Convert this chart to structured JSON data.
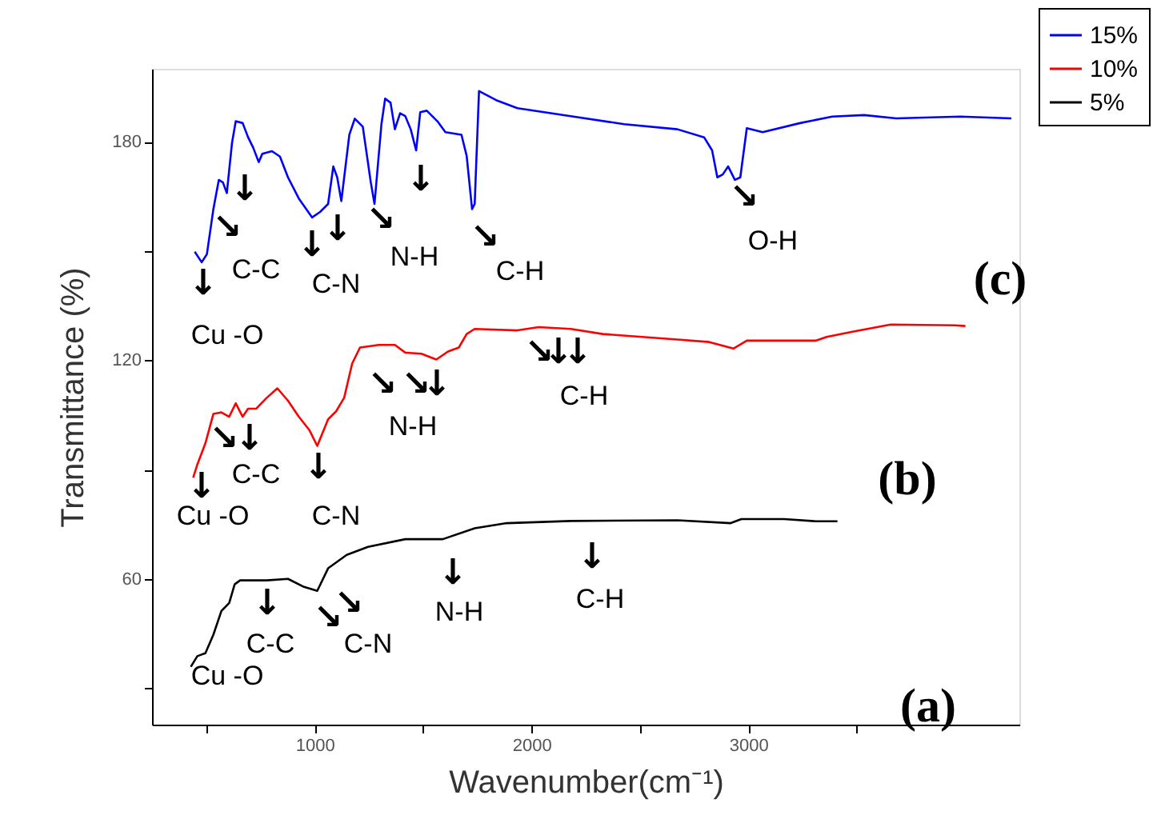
{
  "chart_data": {
    "type": "line",
    "xlabel": "Wavenumber(cm⁻¹)",
    "ylabel": "Transmittance (%)",
    "xlim": [
      250,
      4250
    ],
    "ylim": [
      20,
      200
    ],
    "xticks": [
      {
        "value": 500,
        "label": null
      },
      1000,
      {
        "value": 1500,
        "label": null
      },
      2000,
      {
        "value": 2500,
        "label": null
      },
      3000,
      {
        "value": 3500,
        "label": null
      }
    ],
    "yticks": [
      {
        "value": 30,
        "label": null
      },
      60,
      {
        "value": 90,
        "label": null
      },
      120,
      {
        "value": 150,
        "label": null
      },
      180
    ],
    "legend": "top right",
    "line_style": "solid",
    "series": [
      {
        "name": "15%",
        "color": "#0000ff",
        "x": [
          447,
          479,
          503,
          533,
          558,
          577,
          595,
          619,
          636,
          668,
          693,
          717,
          742,
          759,
          803,
          840,
          877,
          927,
          988,
          1025,
          1062,
          1086,
          1104,
          1123,
          1160,
          1185,
          1222,
          1259,
          1276,
          1308,
          1325,
          1350,
          1370,
          1394,
          1418,
          1443,
          1468,
          1487,
          1517,
          1566,
          1603,
          1677,
          1701,
          1726,
          1738,
          1758,
          1837,
          1935,
          2181,
          2427,
          2673,
          2796,
          2833,
          2857,
          2882,
          2907,
          2938,
          2963,
          2993,
          3066,
          3239,
          3387,
          3534,
          3682,
          3977,
          4213
        ],
        "values": [
          149.8,
          146.9,
          149.1,
          161.5,
          169.5,
          168.8,
          165.9,
          179.7,
          185.6,
          185.1,
          181.2,
          178.3,
          174.4,
          176.7,
          177.4,
          175.9,
          170.2,
          164.4,
          159.2,
          160.7,
          162.9,
          173.2,
          170.2,
          163.7,
          181.9,
          186.3,
          184.1,
          168.8,
          162.9,
          184.8,
          191.8,
          190.7,
          183.4,
          187.8,
          187.0,
          183.4,
          177.6,
          188.1,
          188.5,
          185.6,
          182.6,
          181.9,
          176.1,
          161.5,
          162.9,
          193.9,
          191.4,
          189.2,
          187.0,
          184.8,
          183.4,
          181.2,
          177.6,
          170.2,
          171.0,
          173.2,
          169.5,
          170.2,
          183.7,
          182.6,
          185.1,
          186.9,
          187.3,
          186.4,
          186.9,
          186.4
        ]
      },
      {
        "name": "10%",
        "color": "#ff0000",
        "x": [
          440,
          459,
          496,
          533,
          570,
          606,
          636,
          668,
          693,
          730,
          779,
          828,
          877,
          927,
          975,
          1012,
          1062,
          1099,
          1136,
          1173,
          1209,
          1296,
          1370,
          1418,
          1492,
          1561,
          1615,
          1665,
          1701,
          1738,
          1935,
          2033,
          2181,
          2329,
          2673,
          2820,
          2931,
          2993,
          3313,
          3361,
          3485,
          3657,
          3952,
          4001
        ],
        "values": [
          87.8,
          91.4,
          97.2,
          105.3,
          105.7,
          104.5,
          108.2,
          104.5,
          106.7,
          106.7,
          109.7,
          112.3,
          108.9,
          104.5,
          100.9,
          96.5,
          103.8,
          106.0,
          109.7,
          119.1,
          123.5,
          124.2,
          124.2,
          122.1,
          121.8,
          120.2,
          122.4,
          123.5,
          127.2,
          128.6,
          128.2,
          129.1,
          128.6,
          127.2,
          125.7,
          125.0,
          123.2,
          125.4,
          125.4,
          126.4,
          127.9,
          129.8,
          129.6,
          129.4
        ]
      },
      {
        "name": "5%",
        "color": "#000000",
        "x": [
          429,
          459,
          496,
          533,
          570,
          606,
          631,
          656,
          779,
          877,
          951,
          1012,
          1062,
          1148,
          1246,
          1418,
          1591,
          1738,
          1886,
          2181,
          2673,
          2919,
          2968,
          3165,
          3313,
          3411
        ],
        "values": [
          35.9,
          38.8,
          39.6,
          44.7,
          51.2,
          53.4,
          58.5,
          59.6,
          59.6,
          60.0,
          57.8,
          56.7,
          62.9,
          66.6,
          68.8,
          70.9,
          70.9,
          73.9,
          75.3,
          75.9,
          76.1,
          75.3,
          76.4,
          76.4,
          75.8,
          75.8
        ]
      }
    ],
    "annotations": [
      "(c)",
      "(b)",
      "(a)",
      "Cu -O",
      "C-C",
      "C-N",
      "N-H",
      "C-H",
      "O-H",
      "Cu -O",
      "C-C",
      "C-N",
      "N-H",
      "C-H",
      "Cu -O",
      "C-C",
      "C-N",
      "N-H",
      "C-H",
      "↓",
      "↘",
      "↓",
      "↓",
      "↓",
      "↘",
      "↓",
      "↘",
      "↘",
      "↓",
      "↘",
      "↓",
      "↓",
      "↘",
      "↘",
      "↓",
      "↘",
      "↓",
      "↓",
      "↓",
      "↘",
      "↘",
      "↓",
      "↓"
    ]
  }
}
